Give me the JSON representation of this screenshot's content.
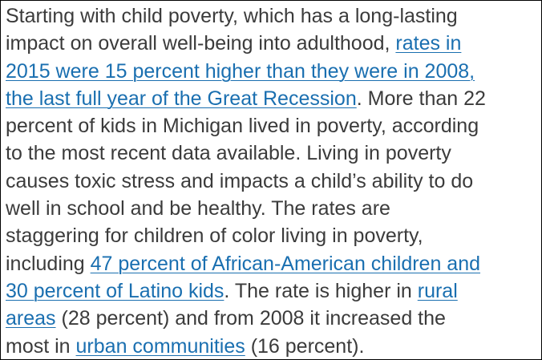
{
  "colors": {
    "text": "#3b3b3b",
    "link": "#1a6fb0",
    "border": "#000000",
    "background": "#ffffff"
  },
  "paragraph": {
    "lines": [
      [
        "Starting with child poverty, which has a long-lasting"
      ],
      [
        "impact on overall well-being into adulthood, ",
        "rates in"
      ],
      [
        "2015 were 15 percent higher than they were in 2008,"
      ],
      [
        "the last full year of the Great Recession",
        ". More than 22"
      ],
      [
        "percent of kids in Michigan lived in poverty, according"
      ],
      [
        "to the most recent data available. Living in poverty"
      ],
      [
        "causes toxic stress and impacts a child’s ability to do"
      ],
      [
        "well in school and be healthy. The rates are"
      ],
      [
        "staggering for children of color living in poverty,"
      ],
      [
        "including ",
        "47 percent of African-American children and"
      ],
      [
        "30 percent of Latino kids",
        ". The rate is higher in ",
        "rural"
      ],
      [
        "areas",
        " (28 percent) and from 2008 it increased the"
      ],
      [
        "most in ",
        "urban communities",
        " (16 percent)."
      ]
    ]
  }
}
